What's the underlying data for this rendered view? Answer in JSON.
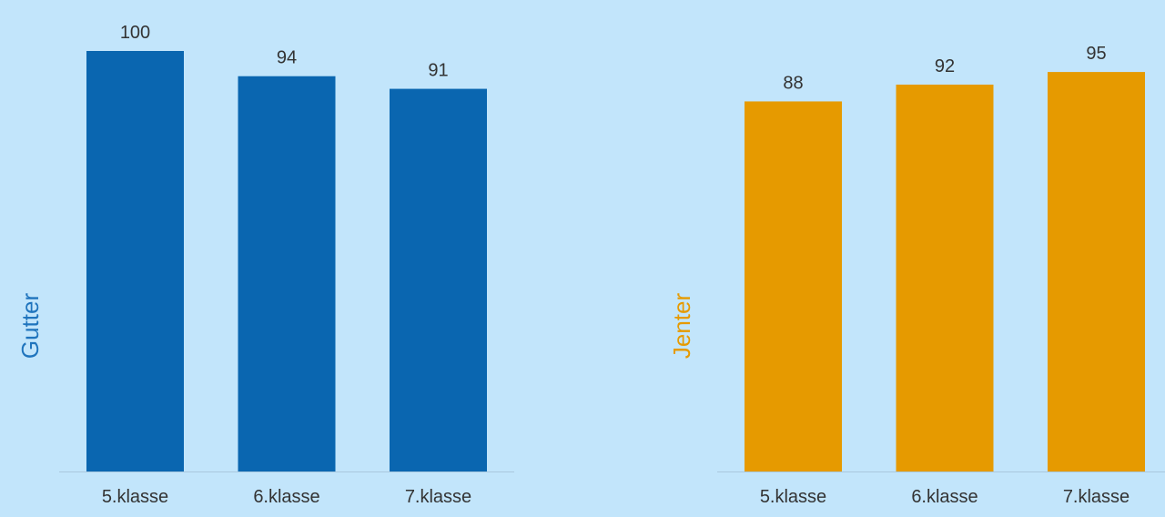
{
  "background": "#c2e5fb",
  "chart_data": [
    {
      "type": "bar",
      "series_label": "Gutter",
      "color": "#0a66b0",
      "label_color": "#1f74bd",
      "categories": [
        "5.klasse",
        "6.klasse",
        "7.klasse"
      ],
      "values": [
        100,
        94,
        91
      ],
      "data_labels": [
        "100",
        "94",
        "91"
      ],
      "ylim": [
        0,
        100
      ],
      "grid": false
    },
    {
      "type": "bar",
      "series_label": "Jenter",
      "color": "#e69a00",
      "label_color": "#e69a00",
      "categories": [
        "5.klasse",
        "6.klasse",
        "7.klasse"
      ],
      "values": [
        88,
        92,
        95
      ],
      "data_labels": [
        "88",
        "92",
        "95"
      ],
      "ylim": [
        0,
        100
      ],
      "grid": false
    }
  ]
}
